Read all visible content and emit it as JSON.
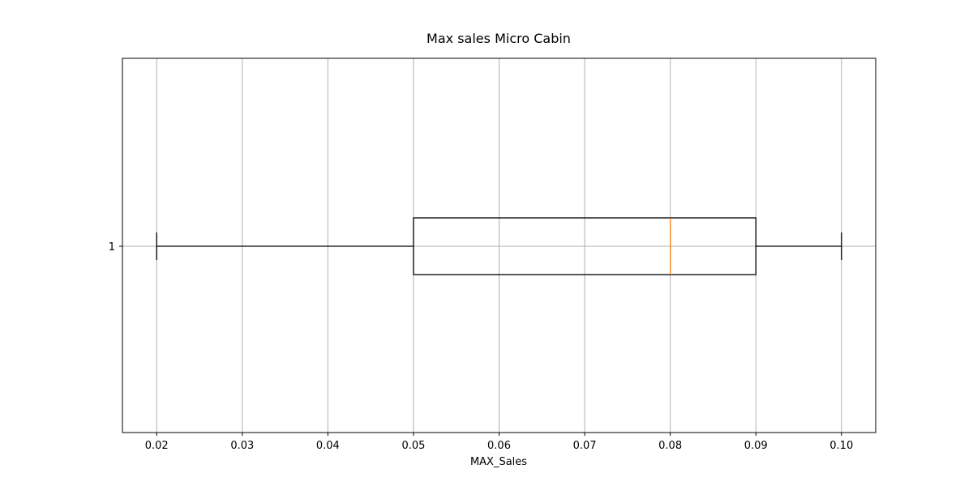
{
  "chart_data": {
    "type": "boxplot",
    "orientation": "horizontal",
    "title": "Max sales Micro Cabin",
    "xlabel": "MAX_Sales",
    "ylabel": "",
    "xlim": [
      0.016,
      0.104
    ],
    "x_ticks": [
      "0.02",
      "0.03",
      "0.04",
      "0.05",
      "0.06",
      "0.07",
      "0.08",
      "0.09",
      "0.10"
    ],
    "x_tick_values": [
      0.02,
      0.03,
      0.04,
      0.05,
      0.06,
      0.07,
      0.08,
      0.09,
      0.1
    ],
    "y_ticks": [
      "1"
    ],
    "grid": true,
    "boxes": [
      {
        "label": "1",
        "whisker_low": 0.02,
        "q1": 0.05,
        "median": 0.08,
        "q3": 0.09,
        "whisker_high": 0.1
      }
    ],
    "colors": {
      "box": "#000000",
      "median": "#ff7f0e",
      "grid": "#b0b0b0"
    }
  }
}
